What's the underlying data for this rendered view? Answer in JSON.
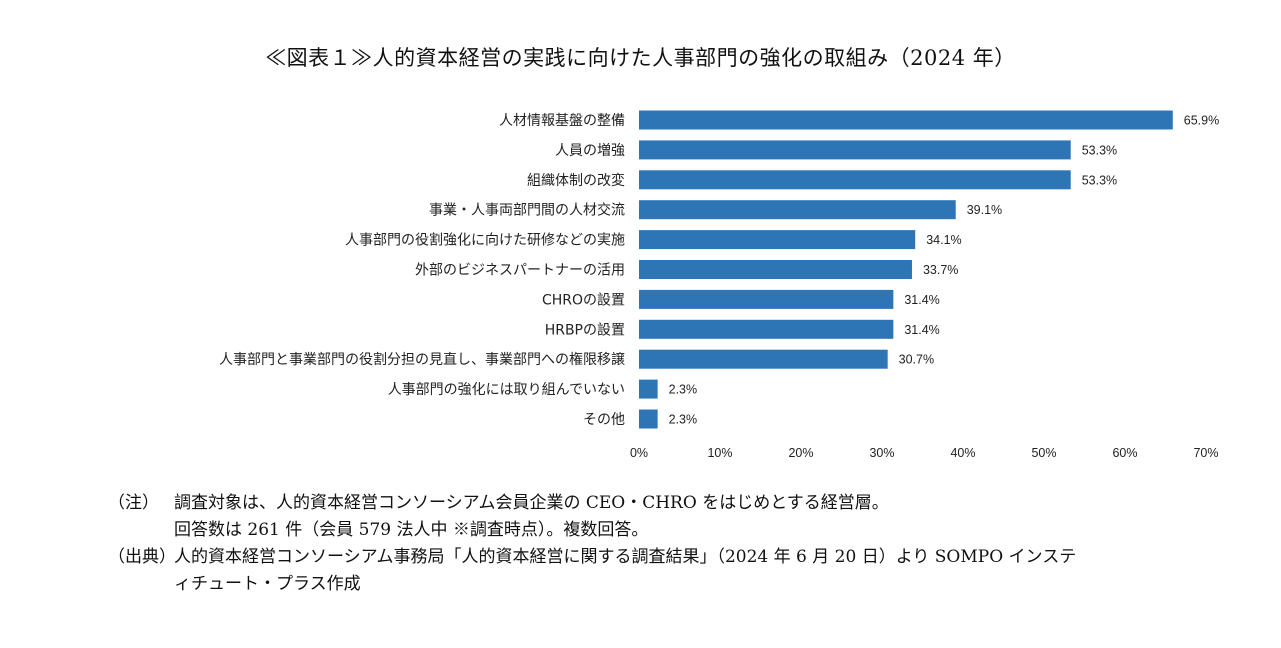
{
  "title": "≪図表１≫人的資本経営の実践に向けた人事部門の強化の取組み（2024 年）",
  "chart_data": {
    "type": "bar",
    "orientation": "horizontal",
    "categories": [
      "人材情報基盤の整備",
      "人員の増強",
      "組織体制の改変",
      "事業・人事両部門間の人材交流",
      "人事部門の役割強化に向けた研修などの実施",
      "外部のビジネスパートナーの活用",
      "CHROの設置",
      "HRBPの設置",
      "人事部門と事業部門の役割分担の見直し、事業部門への権限移譲",
      "人事部門の強化には取り組んでいない",
      "その他"
    ],
    "values": [
      65.9,
      53.3,
      53.3,
      39.1,
      34.1,
      33.7,
      31.4,
      31.4,
      30.7,
      2.3,
      2.3
    ],
    "value_labels": [
      "65.9%",
      "53.3%",
      "53.3%",
      "39.1%",
      "34.1%",
      "33.7%",
      "31.4%",
      "31.4%",
      "30.7%",
      "2.3%",
      "2.3%"
    ],
    "xticks": [
      "0%",
      "10%",
      "20%",
      "30%",
      "40%",
      "50%",
      "60%",
      "70%"
    ],
    "xlim": [
      0,
      70
    ],
    "bar_color": "#2e75b6",
    "grid": false
  },
  "notes": {
    "note_head": "（注）",
    "note_line1": "調査対象は、人的資本経営コンソーシアム会員企業の CEO・CHRO をはじめとする経営層。",
    "note_line2": "回答数は 261 件（会員 579 法人中 ※調査時点）。複数回答。",
    "source_head": "（出典）",
    "source_line1": "人的資本経営コンソーシアム事務局「人的資本経営に関する調査結果」（2024 年 6 月 20 日）より SOMPO インステ",
    "source_line2": "ィチュート・プラス作成"
  }
}
